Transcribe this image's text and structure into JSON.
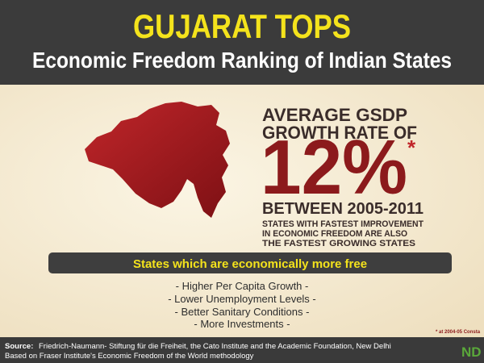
{
  "header": {
    "title": "GUJARAT TOPS",
    "subtitle": "Economic Freedom Ranking of Indian States"
  },
  "stat": {
    "lead": [
      "AVERAGE GSDP",
      "GROWTH RATE OF"
    ],
    "value": "12%",
    "asterisk": "*",
    "period": "BETWEEN 2005-2011",
    "note": [
      "STATES WITH FASTEST IMPROVEMENT",
      "IN ECONOMIC FREEDOM ARE ALSO",
      "THE FASTEST GROWING STATES"
    ]
  },
  "banner": "States which are economically more free",
  "bullets": [
    "- Higher Per Capita Growth -",
    "- Lower Unemployment Levels -",
    "- Better Sanitary Conditions -",
    "- More Investments -"
  ],
  "footnote": "* at 2004-05 Consta",
  "source": {
    "label": "Source:",
    "lines": [
      "Friedrich-Naumann- Stiftung für die Freiheit, the Cato Institute and the Academic Foundation, New Delhi",
      "Based on Fraser Institute's Economic Freedom of the World methodology"
    ]
  },
  "logo": "ND"
}
